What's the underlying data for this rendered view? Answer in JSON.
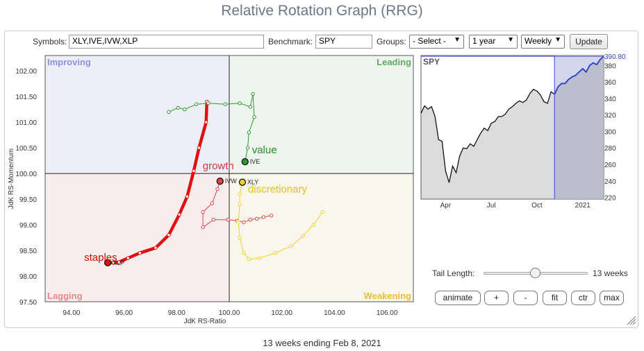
{
  "page_title": "Relative Rotation Graph (RRG)",
  "controls": {
    "symbols_label": "Symbols:",
    "symbols_value": "XLY,IVE,IVW,XLP",
    "benchmark_label": "Benchmark:",
    "benchmark_value": "SPY",
    "groups_label": "Groups:",
    "groups_value": "- Select -",
    "period_value": "1 year",
    "frequency_value": "Weekly",
    "update_label": "Update"
  },
  "tail": {
    "label": "Tail Length:",
    "value": "13 weeks",
    "fraction": 0.5
  },
  "buttons": {
    "animate": "animate",
    "plus": "+",
    "minus": "-",
    "fit": "fit",
    "ctr": "ctr",
    "max": "max"
  },
  "footer": "13 weeks ending Feb 8, 2021",
  "colors": {
    "improving_bg": "#eeeef8",
    "leading_bg": "#eef5ee",
    "lagging_bg": "#f8eded",
    "weakening_bg": "#f9f6ec",
    "improving_text": "#8b93d8",
    "leading_text": "#5fad5f",
    "lagging_text": "#e28a8a",
    "weakening_text": "#e6c037",
    "XLP": "#e30f0f",
    "IVW": "#e0444d",
    "IVE": "#2e9a2e",
    "XLY": "#f2d12c",
    "spy_line": "#111111",
    "spy_highlight": "#3347c8"
  },
  "chart_data": [
    {
      "type": "scatter",
      "xlabel": "JdK RS-Ratio",
      "ylabel": "JdK RS-Momentum",
      "xlim": [
        93,
        107
      ],
      "ylim": [
        97.5,
        102.3
      ],
      "xticks": [
        94,
        96,
        98,
        100,
        102,
        104,
        106
      ],
      "xtick_labels": [
        "94.00",
        "96.00",
        "98.00",
        "100.00",
        "102.00",
        "104.00",
        "106.00"
      ],
      "yticks": [
        97.5,
        98.0,
        98.5,
        99.0,
        99.5,
        100.0,
        100.5,
        101.0,
        101.5,
        102.0
      ],
      "ytick_labels": [
        "97.50",
        "98.00",
        "98.50",
        "99.00",
        "99.50",
        "100.00",
        "100.50",
        "101.00",
        "101.50",
        "102.00"
      ],
      "center": [
        100,
        100
      ],
      "quadrants": {
        "improving": "Improving",
        "leading": "Leading",
        "lagging": "Lagging",
        "weakening": "Weakening"
      },
      "series": [
        {
          "symbol": "XLP",
          "name": "staples",
          "color_key": "XLP",
          "width": 4.5,
          "points": [
            [
              99.15,
              101.4
            ],
            [
              99.12,
              101.0
            ],
            [
              98.85,
              100.5
            ],
            [
              98.65,
              100.05
            ],
            [
              98.4,
              99.55
            ],
            [
              98.1,
              99.2
            ],
            [
              97.7,
              98.8
            ],
            [
              97.2,
              98.55
            ],
            [
              96.6,
              98.45
            ],
            [
              96.15,
              98.35
            ],
            [
              95.8,
              98.27
            ],
            [
              95.6,
              98.26
            ],
            [
              95.38,
              98.26
            ]
          ]
        },
        {
          "symbol": "IVW",
          "name": "growth",
          "color_key": "IVW",
          "width": 1,
          "points": [
            [
              101.6,
              99.18
            ],
            [
              101.3,
              99.15
            ],
            [
              101.05,
              99.12
            ],
            [
              100.8,
              99.1
            ],
            [
              100.55,
              99.05
            ],
            [
              100.3,
              99.08
            ],
            [
              99.95,
              99.1
            ],
            [
              99.4,
              99.1
            ],
            [
              99.0,
              98.95
            ],
            [
              99.0,
              99.25
            ],
            [
              99.35,
              99.42
            ],
            [
              99.55,
              99.7
            ],
            [
              99.65,
              99.85
            ]
          ]
        },
        {
          "symbol": "IVE",
          "name": "value",
          "color_key": "IVE",
          "width": 1,
          "points": [
            [
              97.7,
              101.2
            ],
            [
              98.05,
              101.28
            ],
            [
              98.3,
              101.25
            ],
            [
              98.75,
              101.35
            ],
            [
              99.2,
              101.37
            ],
            [
              99.85,
              101.35
            ],
            [
              100.4,
              101.37
            ],
            [
              100.8,
              101.3
            ],
            [
              100.9,
              101.55
            ],
            [
              100.95,
              101.1
            ],
            [
              100.75,
              100.8
            ],
            [
              100.7,
              100.5
            ],
            [
              100.6,
              100.23
            ]
          ]
        },
        {
          "symbol": "XLY",
          "name": "discretionary",
          "color_key": "XLY",
          "width": 1,
          "points": [
            [
              103.55,
              99.25
            ],
            [
              103.2,
              99.0
            ],
            [
              102.8,
              98.78
            ],
            [
              102.35,
              98.58
            ],
            [
              101.75,
              98.45
            ],
            [
              101.15,
              98.35
            ],
            [
              100.75,
              98.33
            ],
            [
              100.55,
              98.45
            ],
            [
              100.4,
              98.75
            ],
            [
              100.35,
              99.05
            ],
            [
              100.4,
              99.4
            ],
            [
              100.4,
              99.6
            ],
            [
              100.5,
              99.83
            ]
          ]
        }
      ]
    },
    {
      "type": "area",
      "title": "SPY",
      "ylim": [
        218,
        392
      ],
      "yticks": [
        220,
        240,
        260,
        280,
        300,
        320,
        340,
        360,
        380
      ],
      "xticks_labels": [
        "Apr",
        "Jul",
        "Oct",
        "2021"
      ],
      "xtick_weeks": [
        7,
        20,
        33,
        46
      ],
      "last_value_label": "390.80",
      "highlight_start_week": 38,
      "values": [
        322,
        331,
        327,
        330,
        318,
        290,
        288,
        252,
        238,
        258,
        250,
        270,
        280,
        279,
        285,
        282,
        290,
        298,
        304,
        301,
        310,
        312,
        318,
        318,
        321,
        327,
        330,
        334,
        337,
        335,
        338,
        346,
        351,
        349,
        344,
        336,
        334,
        348,
        345,
        354,
        358,
        358,
        363,
        366,
        368,
        372,
        376,
        372,
        380,
        383,
        381,
        387,
        391
      ]
    }
  ]
}
